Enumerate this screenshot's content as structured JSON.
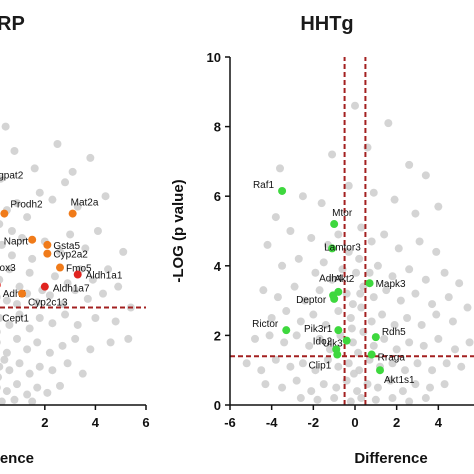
{
  "chart_data": [
    {
      "type": "scatter",
      "title": "RP",
      "xlabel": "rence",
      "ylabel": "",
      "xlim": [
        -0.8,
        6
      ],
      "ylim": [
        0,
        10
      ],
      "xticks": [
        "2",
        "4",
        "6"
      ],
      "xtick_values": [
        2,
        4,
        6
      ],
      "threshold_y": 2.8,
      "colors": {
        "background": "#cfcfcf",
        "orange": "#f07b1a",
        "red": "#e0231f",
        "blue": "#3b4fd8",
        "threshold": "#a32020"
      },
      "background_points": [
        [
          0.2,
          5.2
        ],
        [
          0.5,
          5.6
        ],
        [
          0.9,
          5.8
        ],
        [
          1.3,
          5.4
        ],
        [
          1.8,
          6.1
        ],
        [
          2.3,
          5.9
        ],
        [
          2.8,
          6.4
        ],
        [
          3.3,
          5.7
        ],
        [
          3.1,
          6.7
        ],
        [
          0.3,
          4.6
        ],
        [
          0.7,
          4.3
        ],
        [
          1.1,
          4.8
        ],
        [
          1.5,
          4.2
        ],
        [
          2.0,
          4.7
        ],
        [
          2.6,
          4.4
        ],
        [
          3.0,
          4.9
        ],
        [
          3.6,
          4.5
        ],
        [
          4.1,
          5.0
        ],
        [
          0.2,
          3.6
        ],
        [
          0.6,
          3.9
        ],
        [
          1.0,
          3.4
        ],
        [
          1.4,
          3.8
        ],
        [
          1.9,
          3.3
        ],
        [
          2.4,
          3.7
        ],
        [
          2.9,
          3.5
        ],
        [
          3.4,
          3.9
        ],
        [
          3.9,
          3.6
        ],
        [
          4.5,
          3.9
        ],
        [
          0.1,
          3.1
        ],
        [
          0.5,
          3.0
        ],
        [
          0.9,
          2.9
        ],
        [
          1.3,
          3.2
        ],
        [
          1.7,
          2.95
        ],
        [
          2.2,
          3.15
        ],
        [
          2.7,
          2.9
        ],
        [
          3.2,
          3.3
        ],
        [
          3.7,
          3.05
        ],
        [
          4.3,
          3.2
        ],
        [
          0.2,
          2.5
        ],
        [
          0.6,
          2.3
        ],
        [
          1.0,
          2.6
        ],
        [
          1.4,
          2.2
        ],
        [
          1.8,
          2.5
        ],
        [
          2.3,
          2.35
        ],
        [
          2.8,
          2.6
        ],
        [
          3.3,
          2.3
        ],
        [
          4.0,
          2.5
        ],
        [
          4.8,
          2.4
        ],
        [
          0.1,
          1.8
        ],
        [
          0.5,
          1.5
        ],
        [
          0.9,
          1.9
        ],
        [
          1.3,
          1.6
        ],
        [
          1.7,
          1.8
        ],
        [
          2.2,
          1.5
        ],
        [
          2.7,
          1.7
        ],
        [
          3.2,
          1.9
        ],
        [
          3.8,
          1.6
        ],
        [
          4.6,
          1.8
        ],
        [
          5.3,
          1.9
        ],
        [
          0.2,
          1.1
        ],
        [
          0.6,
          1.0
        ],
        [
          1.0,
          1.2
        ],
        [
          1.4,
          0.9
        ],
        [
          1.8,
          1.1
        ],
        [
          2.3,
          1.0
        ],
        [
          2.9,
          1.2
        ],
        [
          3.5,
          0.9
        ],
        [
          0.1,
          0.5
        ],
        [
          0.5,
          0.4
        ],
        [
          0.9,
          0.6
        ],
        [
          1.3,
          0.3
        ],
        [
          1.7,
          0.5
        ],
        [
          2.1,
          0.35
        ],
        [
          2.6,
          0.55
        ],
        [
          0.3,
          0.1
        ],
        [
          0.8,
          0.15
        ],
        [
          1.5,
          0.1
        ],
        [
          4.9,
          3.4
        ],
        [
          5.4,
          2.8
        ],
        [
          5.1,
          4.4
        ],
        [
          4.4,
          6.0
        ],
        [
          3.8,
          7.1
        ],
        [
          2.5,
          7.5
        ],
        [
          1.6,
          6.8
        ],
        [
          0.8,
          7.3
        ],
        [
          0.25,
          6.5
        ],
        [
          0.45,
          8.0
        ],
        [
          0.7,
          5.0
        ],
        [
          0.1,
          2.1
        ],
        [
          0.4,
          1.3
        ],
        [
          0.15,
          0.8
        ]
      ],
      "genes": [
        {
          "name": "gpat2",
          "x": 0.0,
          "y": 6.4,
          "color": "orange"
        },
        {
          "name": "Prodh2",
          "x": 0.4,
          "y": 5.5,
          "color": "orange"
        },
        {
          "name": "Mat2a",
          "x": 3.1,
          "y": 5.5,
          "color": "orange"
        },
        {
          "name": "Naprt",
          "x": 1.5,
          "y": 4.75,
          "color": "orange"
        },
        {
          "name": "Gsta5",
          "x": 2.1,
          "y": 4.6,
          "color": "orange"
        },
        {
          "name": "Cyp2a2",
          "x": 2.1,
          "y": 4.35,
          "color": "orange"
        },
        {
          "name": "ox3",
          "x": 0.05,
          "y": 4.0,
          "color": "orange"
        },
        {
          "name": "Fmo5",
          "x": 2.6,
          "y": 3.95,
          "color": "orange"
        },
        {
          "name": "Aldh1a1",
          "x": 3.3,
          "y": 3.75,
          "color": "red"
        },
        {
          "name": "Adh4",
          "x": 0.1,
          "y": 3.45,
          "color": "red"
        },
        {
          "name": "Aldh1a7",
          "x": 2.0,
          "y": 3.4,
          "color": "red"
        },
        {
          "name": "Cyp2c13",
          "x": 1.1,
          "y": 3.2,
          "color": "orange"
        },
        {
          "name": "Cept1",
          "x": 0.0,
          "y": 2.75,
          "color": "blue"
        }
      ]
    },
    {
      "type": "scatter",
      "title": "HHTg",
      "xlabel": "Difference",
      "ylabel": "-LOG (p value)",
      "xlim": [
        -6,
        6
      ],
      "ylim": [
        0,
        10
      ],
      "xticks": [
        "-6",
        "-4",
        "-2",
        "0",
        "2",
        "4",
        "6"
      ],
      "xtick_values": [
        -6,
        -4,
        -2,
        0,
        2,
        4,
        6
      ],
      "yticks": [
        "0",
        "2",
        "4",
        "6",
        "8",
        "10"
      ],
      "ytick_values": [
        0,
        2,
        4,
        6,
        8,
        10
      ],
      "threshold_y": 1.4,
      "threshold_x": [
        -0.5,
        0.5
      ],
      "colors": {
        "background": "#cfcfcf",
        "green": "#3ed83e",
        "threshold": "#a32020"
      },
      "background_points": [
        [
          0.0,
          8.6
        ],
        [
          1.6,
          8.1
        ],
        [
          -1.1,
          7.2
        ],
        [
          0.6,
          7.4
        ],
        [
          2.6,
          6.9
        ],
        [
          -3.6,
          6.8
        ],
        [
          3.4,
          6.6
        ],
        [
          -2.5,
          6.0
        ],
        [
          -1.6,
          5.8
        ],
        [
          -0.3,
          6.3
        ],
        [
          0.9,
          6.1
        ],
        [
          1.9,
          5.9
        ],
        [
          2.9,
          5.5
        ],
        [
          4.0,
          5.7
        ],
        [
          -3.8,
          5.4
        ],
        [
          -3.1,
          5.0
        ],
        [
          -2.1,
          4.8
        ],
        [
          -1.3,
          4.6
        ],
        [
          -0.8,
          4.9
        ],
        [
          0.3,
          5.1
        ],
        [
          0.8,
          4.7
        ],
        [
          1.4,
          4.9
        ],
        [
          2.1,
          4.5
        ],
        [
          3.1,
          4.7
        ],
        [
          3.9,
          4.4
        ],
        [
          -4.2,
          4.6
        ],
        [
          -3.5,
          4.0
        ],
        [
          -2.7,
          4.2
        ],
        [
          -1.9,
          3.8
        ],
        [
          -1.5,
          4.1
        ],
        [
          -0.6,
          3.9
        ],
        [
          0.2,
          4.2
        ],
        [
          0.7,
          3.8
        ],
        [
          1.1,
          4.0
        ],
        [
          1.8,
          3.7
        ],
        [
          2.6,
          3.9
        ],
        [
          3.4,
          3.6
        ],
        [
          4.3,
          3.8
        ],
        [
          5.0,
          3.5
        ],
        [
          -4.4,
          3.3
        ],
        [
          -3.7,
          3.1
        ],
        [
          -2.9,
          3.4
        ],
        [
          -2.4,
          3.0
        ],
        [
          -1.7,
          3.3
        ],
        [
          -1.1,
          3.6
        ],
        [
          -0.4,
          3.2
        ],
        [
          0.4,
          3.4
        ],
        [
          0.9,
          3.1
        ],
        [
          1.5,
          3.3
        ],
        [
          2.2,
          3.0
        ],
        [
          2.9,
          3.2
        ],
        [
          3.7,
          2.9
        ],
        [
          4.5,
          3.1
        ],
        [
          5.4,
          2.8
        ],
        [
          -4.0,
          2.5
        ],
        [
          -3.3,
          2.7
        ],
        [
          -2.6,
          2.4
        ],
        [
          -2.0,
          2.6
        ],
        [
          -1.4,
          2.3
        ],
        [
          -0.8,
          2.7
        ],
        [
          -0.2,
          2.5
        ],
        [
          0.3,
          2.8
        ],
        [
          0.8,
          2.4
        ],
        [
          1.3,
          2.6
        ],
        [
          1.9,
          2.3
        ],
        [
          2.5,
          2.5
        ],
        [
          3.2,
          2.3
        ],
        [
          3.9,
          2.6
        ],
        [
          4.7,
          2.4
        ],
        [
          -4.8,
          1.9
        ],
        [
          -4.1,
          2.0
        ],
        [
          -3.4,
          1.8
        ],
        [
          -2.8,
          2.0
        ],
        [
          -2.2,
          1.7
        ],
        [
          -1.7,
          1.9
        ],
        [
          -1.2,
          1.6
        ],
        [
          -0.7,
          2.0
        ],
        [
          -0.1,
          1.8
        ],
        [
          0.4,
          2.1
        ],
        [
          0.9,
          1.7
        ],
        [
          1.4,
          1.9
        ],
        [
          2.0,
          1.6
        ],
        [
          2.6,
          1.8
        ],
        [
          3.3,
          1.7
        ],
        [
          4.0,
          1.9
        ],
        [
          4.8,
          1.6
        ],
        [
          5.5,
          1.8
        ],
        [
          -5.2,
          1.2
        ],
        [
          -4.5,
          1.0
        ],
        [
          -3.8,
          1.3
        ],
        [
          -3.1,
          1.1
        ],
        [
          -2.5,
          1.2
        ],
        [
          -1.9,
          1.0
        ],
        [
          -1.3,
          1.3
        ],
        [
          -0.8,
          1.1
        ],
        [
          -0.3,
          1.2
        ],
        [
          0.2,
          1.0
        ],
        [
          0.7,
          1.3
        ],
        [
          1.2,
          1.1
        ],
        [
          1.8,
          1.2
        ],
        [
          2.4,
          1.0
        ],
        [
          3.0,
          1.2
        ],
        [
          3.7,
          1.0
        ],
        [
          4.4,
          1.2
        ],
        [
          5.1,
          1.1
        ],
        [
          -4.3,
          0.6
        ],
        [
          -3.5,
          0.5
        ],
        [
          -2.8,
          0.7
        ],
        [
          -2.1,
          0.4
        ],
        [
          -1.5,
          0.6
        ],
        [
          -0.9,
          0.5
        ],
        [
          -0.4,
          0.7
        ],
        [
          0.1,
          0.4
        ],
        [
          0.6,
          0.6
        ],
        [
          1.1,
          0.5
        ],
        [
          1.7,
          0.7
        ],
        [
          2.3,
          0.4
        ],
        [
          2.9,
          0.6
        ],
        [
          3.6,
          0.5
        ],
        [
          4.3,
          0.6
        ],
        [
          -2.6,
          0.2
        ],
        [
          -1.8,
          0.15
        ],
        [
          -1.0,
          0.2
        ],
        [
          -0.2,
          0.1
        ],
        [
          0.3,
          0.2
        ],
        [
          1.0,
          0.15
        ],
        [
          1.8,
          0.2
        ],
        [
          2.6,
          0.1
        ],
        [
          3.4,
          0.2
        ],
        [
          -0.1,
          2.9
        ],
        [
          0.05,
          3.8
        ],
        [
          -0.3,
          4.4
        ],
        [
          0.25,
          3.2
        ],
        [
          -0.15,
          2.2
        ],
        [
          0.15,
          1.5
        ],
        [
          -0.05,
          0.9
        ]
      ],
      "genes": [
        {
          "name": "Raf1",
          "x": -3.5,
          "y": 6.15,
          "color": "green"
        },
        {
          "name": "Mtor",
          "x": -1.0,
          "y": 5.2,
          "color": "green"
        },
        {
          "name": "Lamtor3",
          "x": -1.1,
          "y": 4.5,
          "color": "green"
        },
        {
          "name": "Adh4",
          "x": -1.05,
          "y": 3.15,
          "color": "green"
        },
        {
          "name": "Akt2",
          "x": -0.8,
          "y": 3.25,
          "color": "green"
        },
        {
          "name": "Deptor",
          "x": -1.0,
          "y": 3.05,
          "color": "green"
        },
        {
          "name": "Mapk3",
          "x": 0.7,
          "y": 3.5,
          "color": "green"
        },
        {
          "name": "Rictor",
          "x": -3.3,
          "y": 2.15,
          "color": "green"
        },
        {
          "name": "Pik3r1",
          "x": -0.8,
          "y": 2.15,
          "color": "green"
        },
        {
          "name": "Ulk3",
          "x": -0.4,
          "y": 1.85,
          "color": "green"
        },
        {
          "name": "Rdh5",
          "x": 1.0,
          "y": 1.95,
          "color": "green"
        },
        {
          "name": "Ido2",
          "x": -0.9,
          "y": 1.6,
          "color": "green"
        },
        {
          "name": "Rraga",
          "x": 0.8,
          "y": 1.45,
          "color": "green"
        },
        {
          "name": "Clip1",
          "x": -0.85,
          "y": 1.45,
          "color": "green"
        },
        {
          "name": "Akt1s1",
          "x": 1.2,
          "y": 1.0,
          "color": "green"
        }
      ]
    }
  ]
}
